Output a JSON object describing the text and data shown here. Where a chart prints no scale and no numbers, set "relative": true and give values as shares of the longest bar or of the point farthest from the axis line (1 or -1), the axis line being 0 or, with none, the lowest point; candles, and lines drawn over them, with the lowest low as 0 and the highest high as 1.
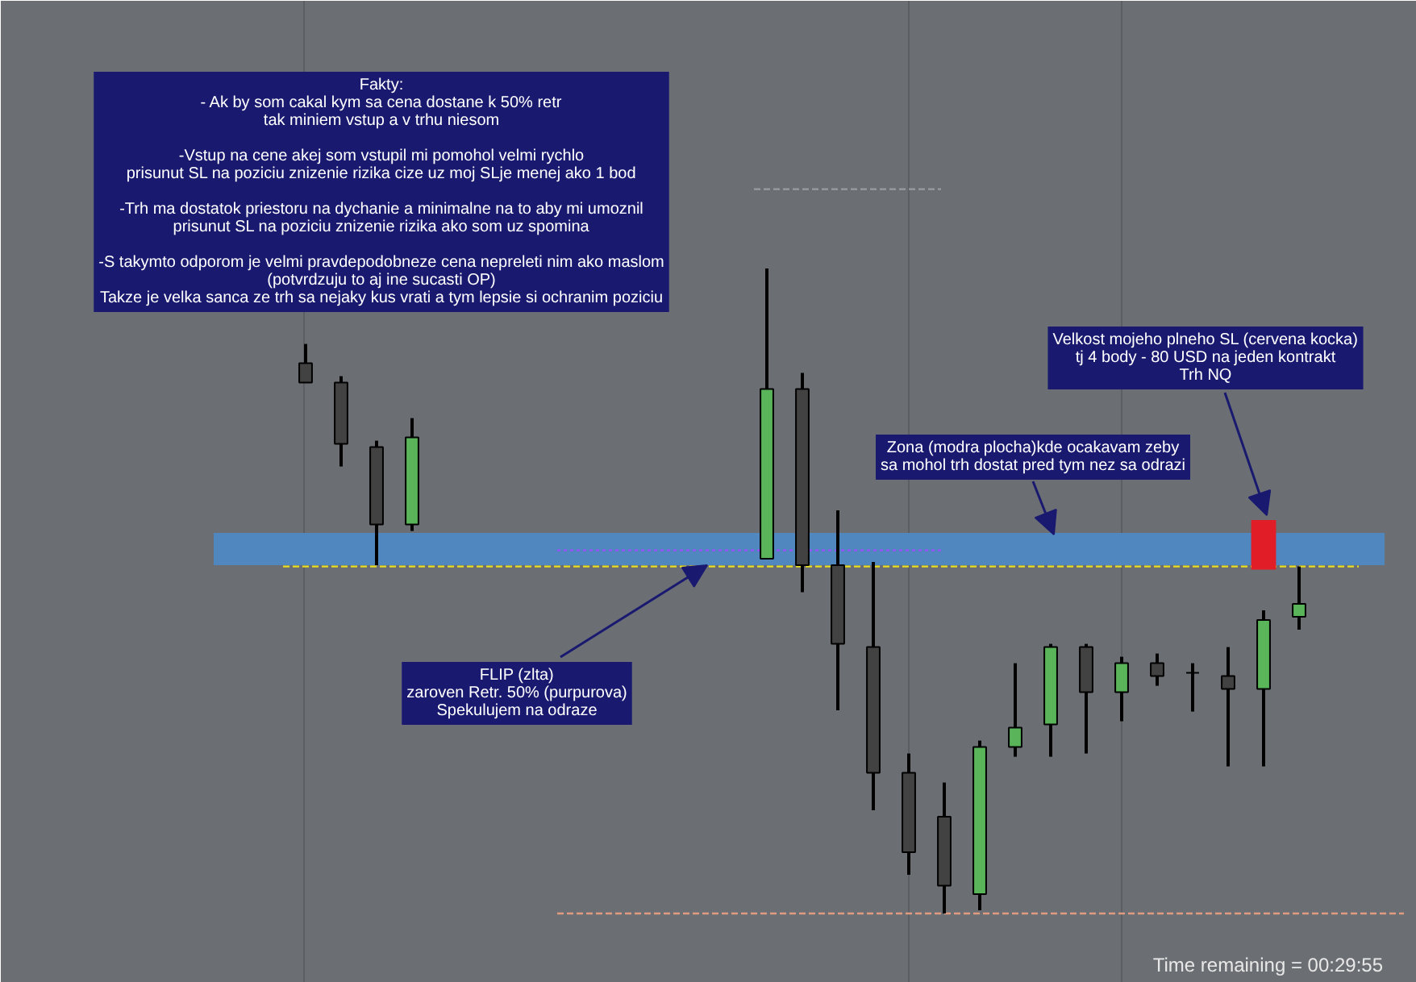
{
  "chart_data": {
    "type": "candlestick",
    "relative": true,
    "grid": "x",
    "categories": [
      null,
      null,
      null,
      null,
      null,
      null,
      null,
      null,
      null,
      null,
      null,
      null,
      null,
      null,
      null,
      null,
      null,
      null,
      null,
      null,
      null,
      null,
      null,
      null,
      null,
      null,
      null,
      null,
      null,
      null,
      null,
      null,
      null,
      null,
      null,
      null,
      null
    ],
    "ohlc": [
      null,
      null,
      null,
      null,
      null,
      null,
      null,
      null,
      [
        0.853,
        0.883,
        0.823,
        0.823
      ],
      [
        0.823,
        0.833,
        0.693,
        0.728
      ],
      [
        0.723,
        0.733,
        0.54,
        0.603
      ],
      [
        0.603,
        0.768,
        0.593,
        0.738
      ],
      null,
      null,
      null,
      null,
      null,
      null,
      null,
      null,
      null,
      [
        0.55,
        1,
        0.55,
        0.813
      ],
      [
        0.813,
        0.838,
        0.498,
        0.54
      ],
      [
        0.54,
        0.625,
        0.315,
        0.418
      ],
      [
        0.413,
        0.545,
        0.16,
        0.218
      ],
      [
        0.218,
        0.248,
        0.06,
        0.095
      ],
      [
        0.15,
        0.203,
        0,
        0.043
      ],
      [
        0.03,
        0.268,
        0.005,
        0.258
      ],
      [
        0.258,
        0.388,
        0.243,
        0.288
      ],
      [
        0.293,
        0.418,
        0.243,
        0.413
      ],
      [
        0.413,
        0.418,
        0.248,
        0.343
      ],
      [
        0.343,
        0.398,
        0.298,
        0.388
      ],
      [
        0.388,
        0.403,
        0.353,
        0.368
      ],
      [
        0.373,
        0.388,
        0.313,
        0.373
      ],
      [
        0.368,
        0.413,
        0.228,
        0.348
      ],
      [
        0.348,
        0.47,
        0.228,
        0.455
      ],
      [
        0.46,
        0.538,
        0.44,
        0.48
      ]
    ],
    "colors": [
      null,
      null,
      null,
      null,
      null,
      null,
      null,
      null,
      "#424242",
      "#424242",
      "#424242",
      "#5ab55a",
      null,
      null,
      null,
      null,
      null,
      null,
      null,
      null,
      null,
      "#5ab55a",
      "#424242",
      "#424242",
      "#424242",
      "#424242",
      "#424242",
      "#5ab55a",
      "#5ab55a",
      "#5ab55a",
      "#424242",
      "#5ab55a",
      "#424242",
      "#000000",
      "#424242",
      "#5ab55a",
      "#5ab55a"
    ],
    "series": [
      {
        "type": "bar",
        "color": "#e11d27",
        "values": [
          null,
          null,
          null,
          null,
          null,
          null,
          null,
          null,
          null,
          null,
          null,
          null,
          null,
          null,
          null,
          null,
          null,
          null,
          null,
          null,
          null,
          null,
          null,
          null,
          null,
          null,
          null,
          null,
          null,
          null,
          null,
          null,
          null,
          null,
          null,
          0.077,
          null
        ],
        "base": [
          null,
          null,
          null,
          null,
          null,
          null,
          null,
          null,
          null,
          null,
          null,
          null,
          null,
          null,
          null,
          null,
          null,
          null,
          null,
          null,
          null,
          null,
          null,
          null,
          null,
          null,
          null,
          null,
          null,
          null,
          null,
          null,
          null,
          null,
          null,
          0.533,
          null
        ]
      }
    ],
    "bands": [
      {
        "axis": "y",
        "from": 0.54,
        "to": 0.59,
        "color": "#5087be"
      }
    ],
    "ref_lines": [
      {
        "axis": "y",
        "value": 0.538,
        "color": "#e8e020",
        "line_style": "dashed"
      },
      {
        "axis": "y",
        "value": 0.563,
        "color": "#9b4dff",
        "line_style": "dotted"
      },
      {
        "axis": "y",
        "value": 0,
        "color": "#e09a80",
        "line_style": "dashed"
      },
      {
        "axis": "y",
        "value": 1.123,
        "color": "#9a9da0",
        "line_style": "dashed"
      }
    ],
    "annotations": [
      "Fakty:\n- Ak by som cakal kym sa cena dostane k 50% retr\ntak miniem vstup a v trhu niesom\n\n-Vstup na cene akej som vstupil mi pomohol velmi rychlo\nprisunut SL na poziciu znizenie rizika cize uz moj SLje menej ako 1 bod\n\n-Trh ma dostatok priestoru na dychanie a minimalne na to aby mi umoznil\nprisunut SL na poziciu znizenie rizika ako som uz spomina\n\n-S takymto odporom je velmi pravdepodobneze cena nepreleti nim ako maslom\n(potvrdzuju to aj ine sucasti OP)\nTakze je velka sanca ze trh sa nejaky kus vrati a tym lepsie si ochranim poziciu",
      "Velkost mojeho plneho SL (cervena kocka)\ntj 4 body - 80 USD na jeden kontrakt\nTrh NQ",
      "Zona (modra plocha)kde ocakavam zeby\nsa mohol trh dostat pred tym nez sa odrazi",
      "FLIP (zlta)\nzaroven Retr. 50% (purpurova)\nSpekulujem na odraze",
      "Time remaining = 00:29:55"
    ]
  }
}
